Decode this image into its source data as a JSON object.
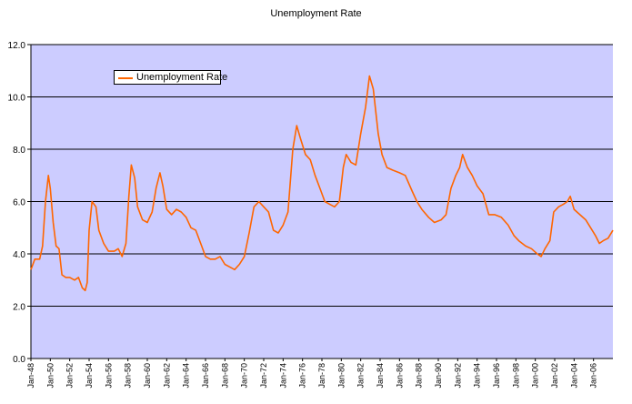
{
  "chart_data": {
    "type": "line",
    "title": "Unemployment Rate",
    "xlabel": "",
    "ylabel": "",
    "ylim": [
      0,
      12
    ],
    "yticks": [
      "0.0",
      "2.0",
      "4.0",
      "6.0",
      "8.0",
      "10.0",
      "12.0"
    ],
    "xticks": [
      "Jan-48",
      "Jan-50",
      "Jan-52",
      "Jan-54",
      "Jan-56",
      "Jan-58",
      "Jan-60",
      "Jan-62",
      "Jan-64",
      "Jan-66",
      "Jan-68",
      "Jan-70",
      "Jan-72",
      "Jan-74",
      "Jan-76",
      "Jan-78",
      "Jan-80",
      "Jan-82",
      "Jan-84",
      "Jan-86",
      "Jan-88",
      "Jan-90",
      "Jan-92",
      "Jan-94",
      "Jan-96",
      "Jan-98",
      "Jan-00",
      "Jan-02",
      "Jan-04",
      "Jan-06"
    ],
    "xlim": [
      1948.0,
      2008.0
    ],
    "grid": true,
    "legend_position": "top-left",
    "plot_background": "#ccccff",
    "line_color": "#ff6600",
    "series": [
      {
        "name": "Unemployment Rate",
        "color": "#ff6600",
        "x": [
          1948.0,
          1948.4,
          1948.9,
          1949.2,
          1949.5,
          1949.8,
          1950.0,
          1950.3,
          1950.6,
          1950.9,
          1951.2,
          1951.6,
          1952.0,
          1952.5,
          1952.9,
          1953.3,
          1953.6,
          1953.8,
          1954.0,
          1954.3,
          1954.7,
          1955.0,
          1955.5,
          1956.0,
          1956.6,
          1957.0,
          1957.4,
          1957.8,
          1958.1,
          1958.35,
          1958.7,
          1959.0,
          1959.5,
          1960.0,
          1960.5,
          1960.9,
          1961.3,
          1961.6,
          1962.0,
          1962.5,
          1963.0,
          1963.5,
          1964.0,
          1964.5,
          1965.0,
          1965.5,
          1966.0,
          1966.5,
          1967.0,
          1967.5,
          1968.0,
          1968.5,
          1969.0,
          1969.5,
          1970.0,
          1970.5,
          1971.0,
          1971.5,
          1972.0,
          1972.5,
          1973.0,
          1973.5,
          1974.0,
          1974.5,
          1975.0,
          1975.4,
          1975.8,
          1976.3,
          1976.8,
          1977.3,
          1977.8,
          1978.3,
          1978.8,
          1979.3,
          1979.8,
          1980.2,
          1980.5,
          1981.0,
          1981.5,
          1982.0,
          1982.5,
          1982.9,
          1983.3,
          1983.8,
          1984.2,
          1984.7,
          1985.3,
          1986.0,
          1986.6,
          1987.3,
          1987.8,
          1988.3,
          1989.0,
          1989.6,
          1990.3,
          1990.8,
          1991.3,
          1991.8,
          1992.2,
          1992.5,
          1993.0,
          1993.5,
          1994.0,
          1994.6,
          1995.2,
          1995.8,
          1996.5,
          1997.2,
          1997.8,
          1998.3,
          1999.0,
          1999.6,
          2000.2,
          2000.6,
          2001.0,
          2001.5,
          2001.9,
          2002.4,
          2002.9,
          2003.3,
          2003.6,
          2004.0,
          2004.6,
          2005.2,
          2005.7,
          2006.2,
          2006.6,
          2007.0,
          2007.5,
          2008.0
        ],
        "values": [
          3.4,
          3.8,
          3.8,
          4.3,
          6.0,
          7.0,
          6.5,
          5.2,
          4.3,
          4.2,
          3.2,
          3.1,
          3.1,
          3.0,
          3.1,
          2.7,
          2.6,
          2.9,
          4.9,
          6.0,
          5.8,
          4.9,
          4.4,
          4.1,
          4.1,
          4.2,
          3.9,
          4.4,
          6.2,
          7.4,
          6.9,
          5.8,
          5.3,
          5.2,
          5.6,
          6.5,
          7.1,
          6.6,
          5.7,
          5.5,
          5.7,
          5.6,
          5.4,
          5.0,
          4.9,
          4.4,
          3.9,
          3.8,
          3.8,
          3.9,
          3.6,
          3.5,
          3.4,
          3.6,
          3.9,
          4.8,
          5.8,
          6.0,
          5.8,
          5.6,
          4.9,
          4.8,
          5.1,
          5.6,
          8.0,
          8.9,
          8.4,
          7.8,
          7.6,
          7.0,
          6.5,
          6.0,
          5.9,
          5.8,
          6.0,
          7.3,
          7.8,
          7.5,
          7.4,
          8.6,
          9.6,
          10.8,
          10.3,
          8.6,
          7.8,
          7.3,
          7.2,
          7.1,
          7.0,
          6.4,
          6.0,
          5.7,
          5.4,
          5.2,
          5.3,
          5.5,
          6.5,
          7.0,
          7.3,
          7.8,
          7.3,
          7.0,
          6.6,
          6.3,
          5.5,
          5.5,
          5.4,
          5.1,
          4.7,
          4.5,
          4.3,
          4.2,
          4.0,
          3.9,
          4.2,
          4.5,
          5.6,
          5.8,
          5.9,
          6.0,
          6.2,
          5.7,
          5.5,
          5.3,
          5.0,
          4.7,
          4.4,
          4.5,
          4.6,
          4.9
        ]
      }
    ]
  }
}
